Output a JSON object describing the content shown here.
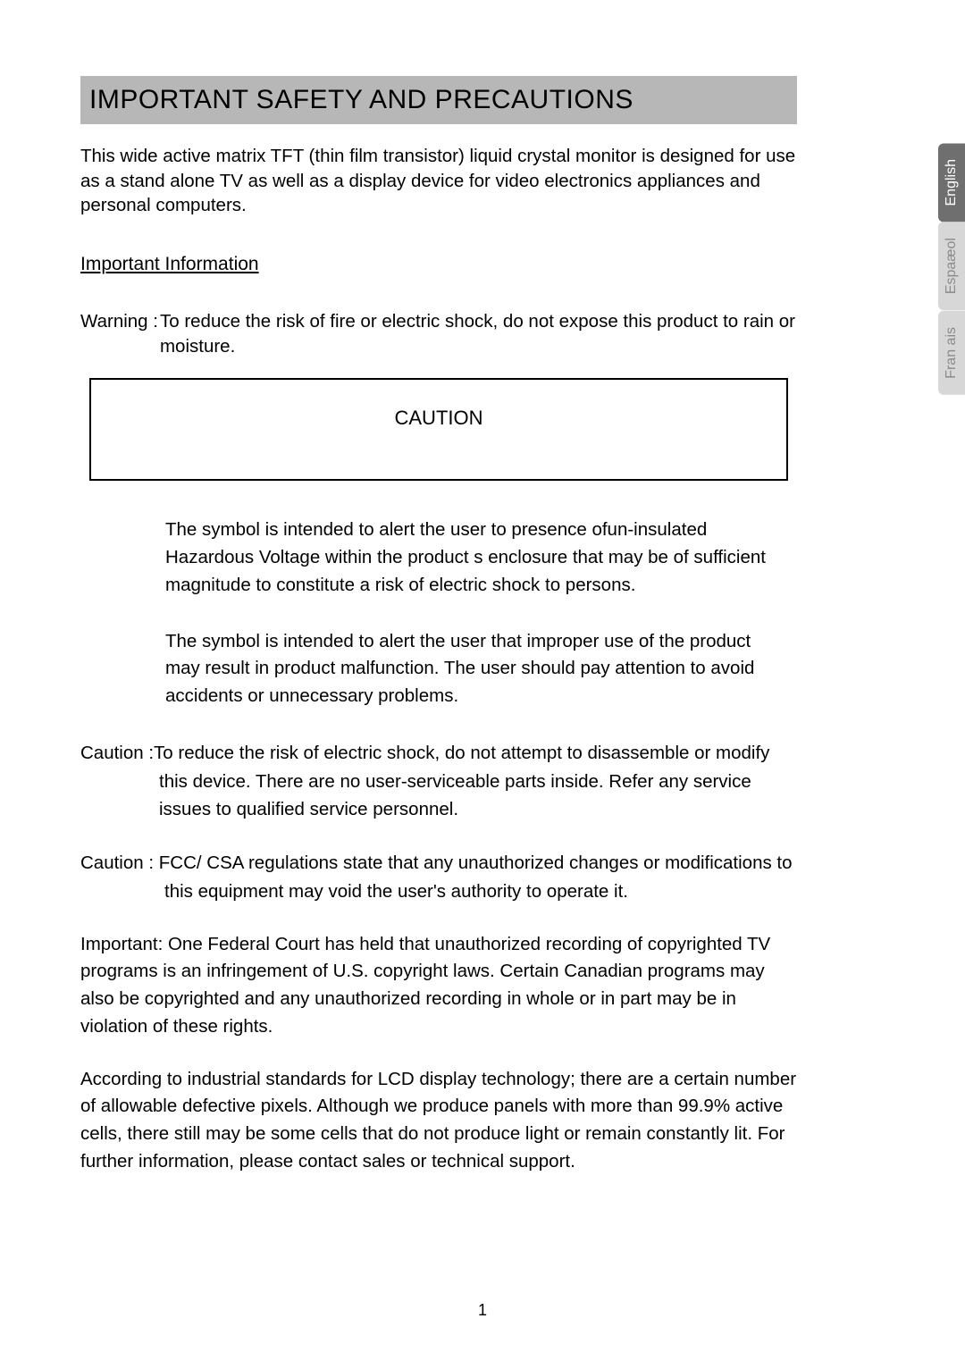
{
  "colors": {
    "titleBarBg": "#b7b7b7",
    "pageBg": "#ffffff",
    "text": "#000000",
    "tabActiveBg": "#6f6f6f",
    "tabActiveText": "#ffffff",
    "tabInactiveBg": "#d7d7d7",
    "tabInactiveText": "#8a8a8a",
    "boxBorder": "#000000"
  },
  "typography": {
    "titleSize": 30,
    "bodySize": 20.5,
    "tabSize": 16
  },
  "title": "IMPORTANT SAFETY AND PRECAUTIONS",
  "intro": "This wide active matrix TFT (thin film transistor) liquid crystal monitor is designed for use as a stand alone TV as well as a display device for video electronics appliances and personal computers.",
  "subheading": "Important Information",
  "warning": {
    "label": "Warning : ",
    "text": "To reduce the risk of fire or electric shock, do not expose this product to rain or moisture."
  },
  "cautionBox": "CAUTION",
  "symbol1": "The symbol is intended to alert the user to presence ofun-insulated  Hazardous Voltage within the product s enclosure that may be of sufficient magnitude to constitute a risk of electric shock to persons.",
  "symbol2": "The symbol is intended to alert the user that improper use of the product may result in product malfunction. The user should pay attention to avoid accidents or unnecessary problems.",
  "caution1": "Caution :To reduce the risk of electric shock, do not attempt to disassemble or modify this device. There are no user-serviceable parts inside. Refer any service issues to qualified service personnel.",
  "caution2": "Caution : FCC/ CSA regulations state that any unauthorized changes or modifications to this equipment may void the user's authority to operate it.",
  "important": "Important: One Federal Court has held that unauthorized recording of copyrighted TV programs is an infringement of U.S. copyright laws. Certain Canadian programs may also be copyrighted and any unauthorized recording in whole or in part may be in violation of these rights.",
  "lcdNote": "According to industrial standards for LCD display technology; there are a certain number of allowable defective pixels. Although we produce panels with more than 99.9% active cells, there still may be some cells that do not produce light or remain constantly lit. For further information, please contact sales or technical support.",
  "pageNumber": "1",
  "langs": {
    "english": "English",
    "espanol": "Espaæol",
    "francais": "Fran ais"
  }
}
